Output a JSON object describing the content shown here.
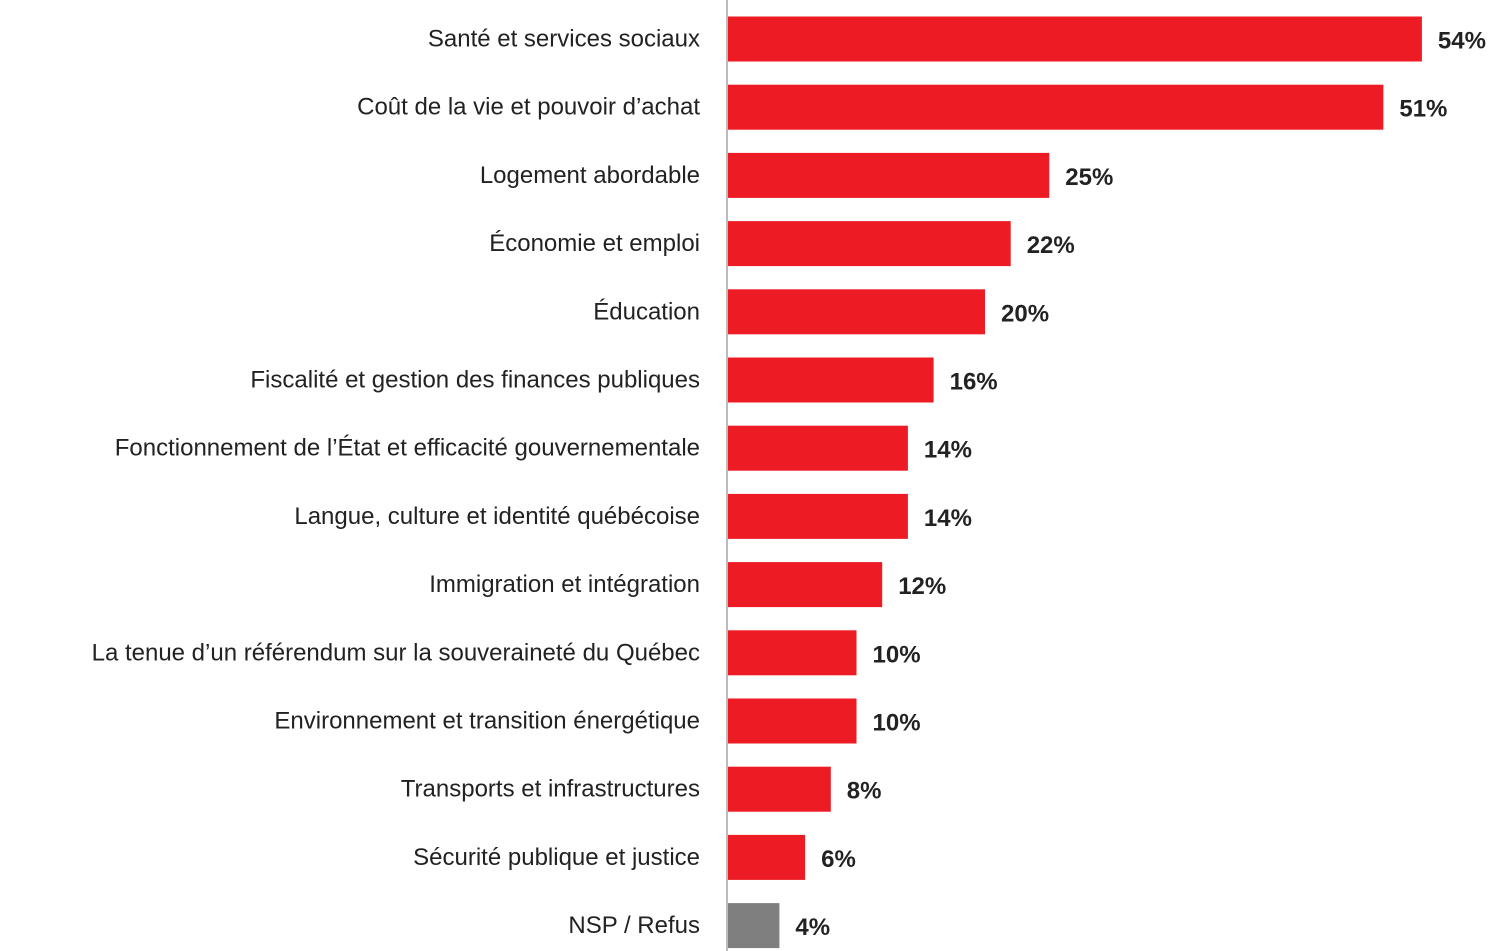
{
  "chart_data": {
    "type": "bar",
    "orientation": "horizontal",
    "categories": [
      "Santé et services sociaux",
      "Coût de la vie et pouvoir d’achat",
      "Logement abordable",
      "Économie et emploi",
      "Éducation",
      "Fiscalité et gestion des finances publiques",
      "Fonctionnement de l’État et efficacité gouvernementale",
      "Langue, culture et identité québécoise",
      "Immigration et intégration",
      "La tenue d’un référendum sur la souveraineté du Québec",
      "Environnement et transition énergétique",
      "Transports et infrastructures",
      "Sécurité publique et justice",
      "NSP / Refus"
    ],
    "values": [
      54,
      51,
      25,
      22,
      20,
      16,
      14,
      14,
      12,
      10,
      10,
      8,
      6,
      4
    ],
    "value_labels": [
      "54%",
      "51%",
      "25%",
      "22%",
      "20%",
      "16%",
      "14%",
      "14%",
      "12%",
      "10%",
      "10%",
      "8%",
      "6%",
      "4%"
    ],
    "unit": "%",
    "title": "",
    "xlabel": "",
    "ylabel": "",
    "xlim": [
      0,
      54
    ],
    "grid": false,
    "colors": {
      "bar": "#ed1c24",
      "bar_other": "#7f7f7f",
      "axis": "#a6a6a6",
      "text": "#222222"
    },
    "gray_categories": [
      "NSP / Refus"
    ]
  }
}
